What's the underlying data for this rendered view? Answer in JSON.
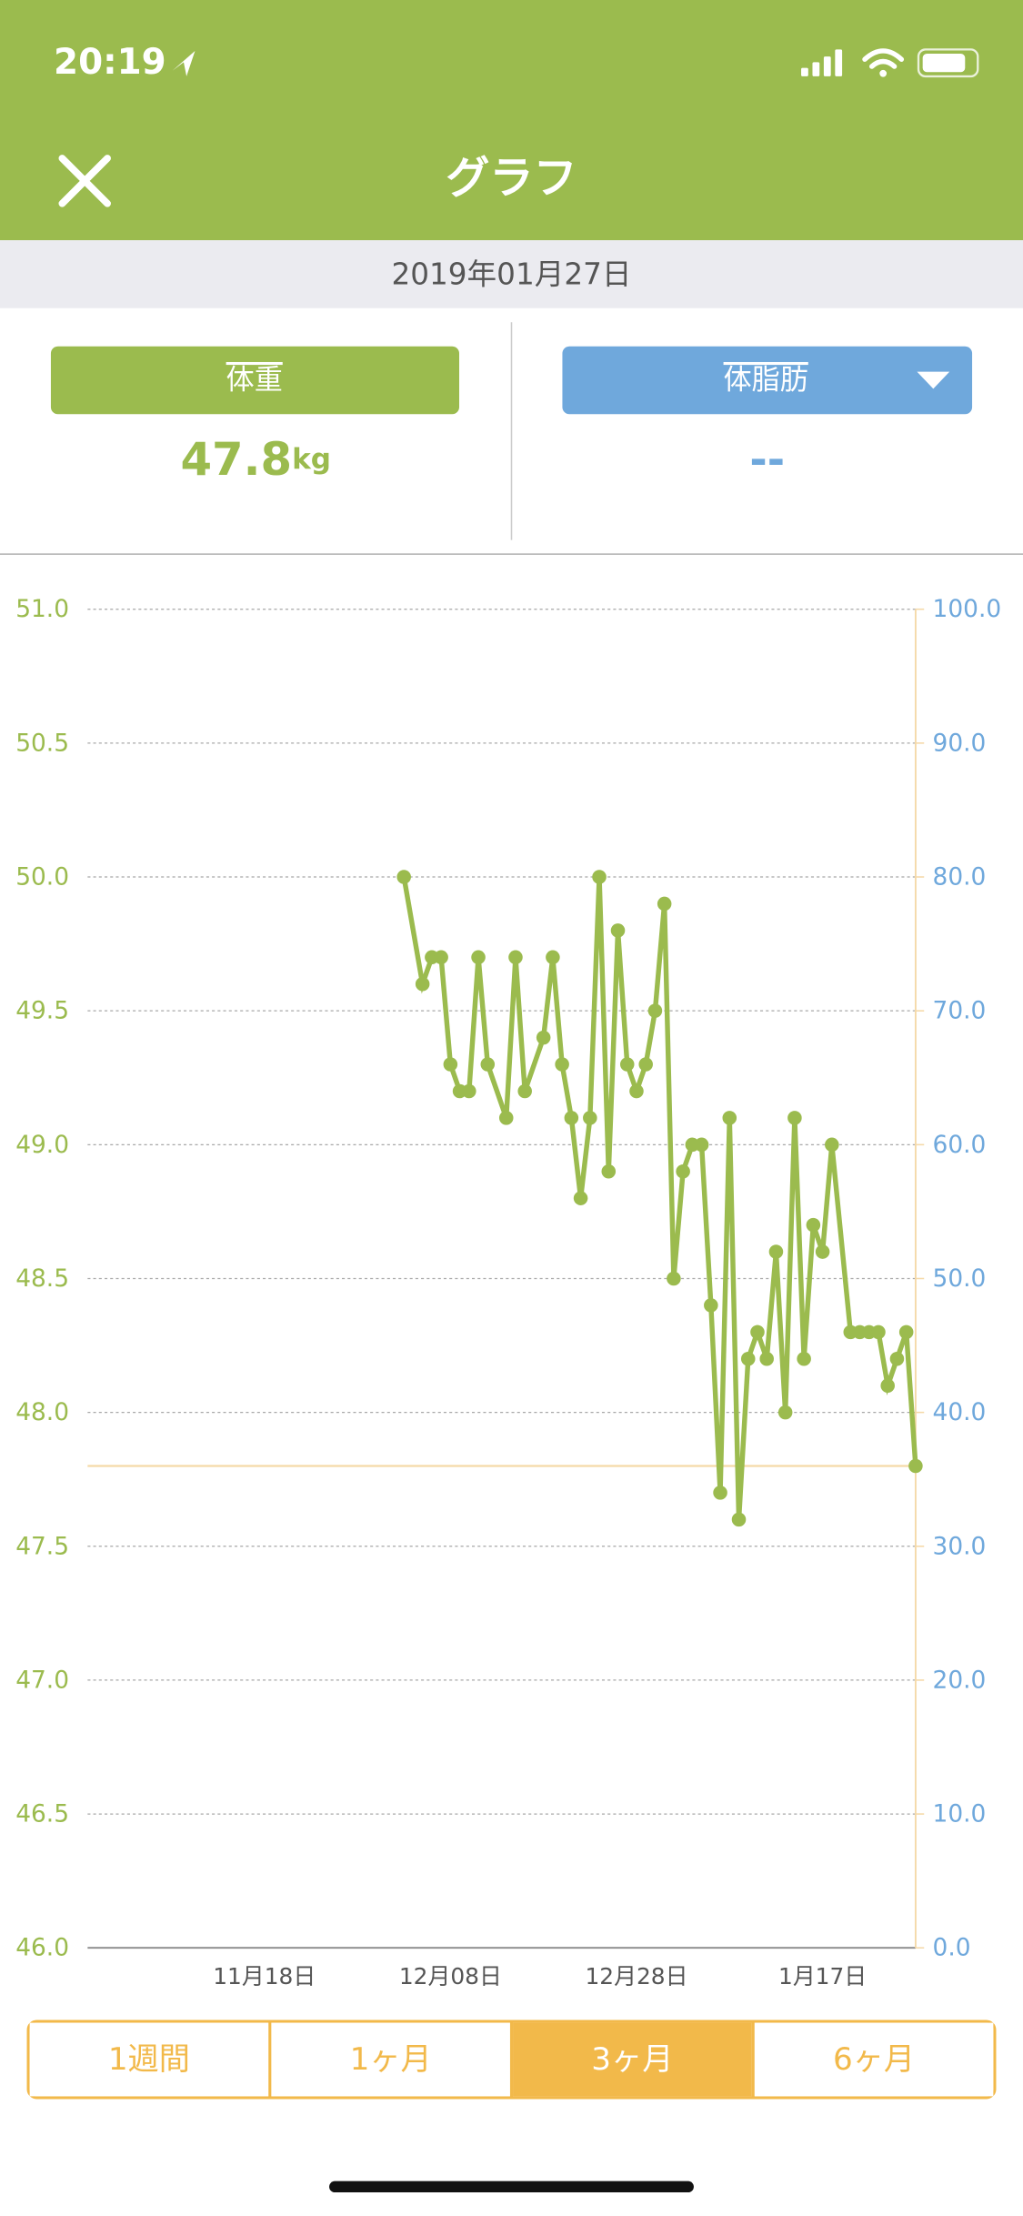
{
  "status_bar": {
    "time": "20:19"
  },
  "header": {
    "title": "グラフ"
  },
  "date": "2019年01月27日",
  "metrics": [
    {
      "label": "体重",
      "value": "47.8",
      "unit": "kg"
    },
    {
      "label": "体脂肪",
      "value": "--"
    }
  ],
  "chart_data": {
    "type": "line",
    "color": "#9bbb4e",
    "x": [
      "12月03日",
      "12月05日",
      "12月06日",
      "12月07日",
      "12月08日",
      "12月09日",
      "12月10日",
      "12月11日",
      "12月12日",
      "12月14日",
      "12月15日",
      "12月16日",
      "12月18日",
      "12月19日",
      "12月20日",
      "12月21日",
      "12月22日",
      "12月23日",
      "12月24日",
      "12月25日",
      "12月26日",
      "12月27日",
      "12月28日",
      "12月29日",
      "12月30日",
      "12月31日",
      "1月01日",
      "1月02日",
      "1月03日",
      "1月04日",
      "1月05日",
      "1月06日",
      "1月07日",
      "1月08日",
      "1月09日",
      "1月10日",
      "1月11日",
      "1月12日",
      "1月13日",
      "1月14日",
      "1月15日",
      "1月16日",
      "1月17日",
      "1月18日",
      "1月20日",
      "1月21日",
      "1月22日",
      "1月23日",
      "1月24日",
      "1月25日",
      "1月26日",
      "1月27日"
    ],
    "values": [
      50.0,
      49.6,
      49.7,
      49.7,
      49.3,
      49.2,
      49.2,
      49.7,
      49.3,
      49.1,
      49.7,
      49.2,
      49.4,
      49.7,
      49.3,
      49.1,
      48.8,
      49.1,
      50.0,
      48.9,
      49.8,
      49.3,
      49.2,
      49.3,
      49.5,
      49.9,
      48.5,
      48.9,
      49.0,
      49.0,
      48.4,
      47.7,
      49.1,
      47.6,
      48.2,
      48.3,
      48.2,
      48.6,
      48.0,
      49.1,
      48.2,
      48.7,
      48.6,
      49.0,
      48.3,
      48.3,
      48.3,
      48.3,
      48.1,
      48.2,
      48.3,
      47.8
    ],
    "xlim": [
      "10月30日",
      "1月27日"
    ],
    "xticks": [
      "11月18日",
      "12月08日",
      "12月28日",
      "1月17日"
    ],
    "ylim": [
      46,
      51
    ],
    "yticks": [
      {
        "value": 46,
        "label": "46.0"
      },
      {
        "value": 46.5,
        "label": "46.5"
      },
      {
        "value": 47,
        "label": "47.0"
      },
      {
        "value": 47.5,
        "label": "47.5"
      },
      {
        "value": 48,
        "label": "48.0"
      },
      {
        "value": 48.5,
        "label": "48.5"
      },
      {
        "value": 49,
        "label": "49.0"
      },
      {
        "value": 49.5,
        "label": "49.5"
      },
      {
        "value": 50,
        "label": "50.0"
      },
      {
        "value": 50.5,
        "label": "50.5"
      },
      {
        "value": 51,
        "label": "51.0"
      }
    ],
    "y2lim": [
      0,
      100
    ],
    "y2ticks": [
      {
        "value": 0,
        "label": "0.0"
      },
      {
        "value": 10,
        "label": "10.0"
      },
      {
        "value": 20,
        "label": "20.0"
      },
      {
        "value": 30,
        "label": "30.0"
      },
      {
        "value": 40,
        "label": "40.0"
      },
      {
        "value": 50,
        "label": "50.0"
      },
      {
        "value": 60,
        "label": "60.0"
      },
      {
        "value": 70,
        "label": "70.0"
      },
      {
        "value": 80,
        "label": "80.0"
      },
      {
        "value": 90,
        "label": "90.0"
      },
      {
        "value": 100,
        "label": "100.0"
      }
    ],
    "y_color": "#9bbb4e",
    "y2_color": "#6fa8dc",
    "reference_line": 47.8,
    "reference_color": "#f5d9a8",
    "grid": true
  },
  "periods": {
    "options": [
      "1週間",
      "1ヶ月",
      "3ヶ月",
      "6ヶ月"
    ],
    "selected": 2
  }
}
